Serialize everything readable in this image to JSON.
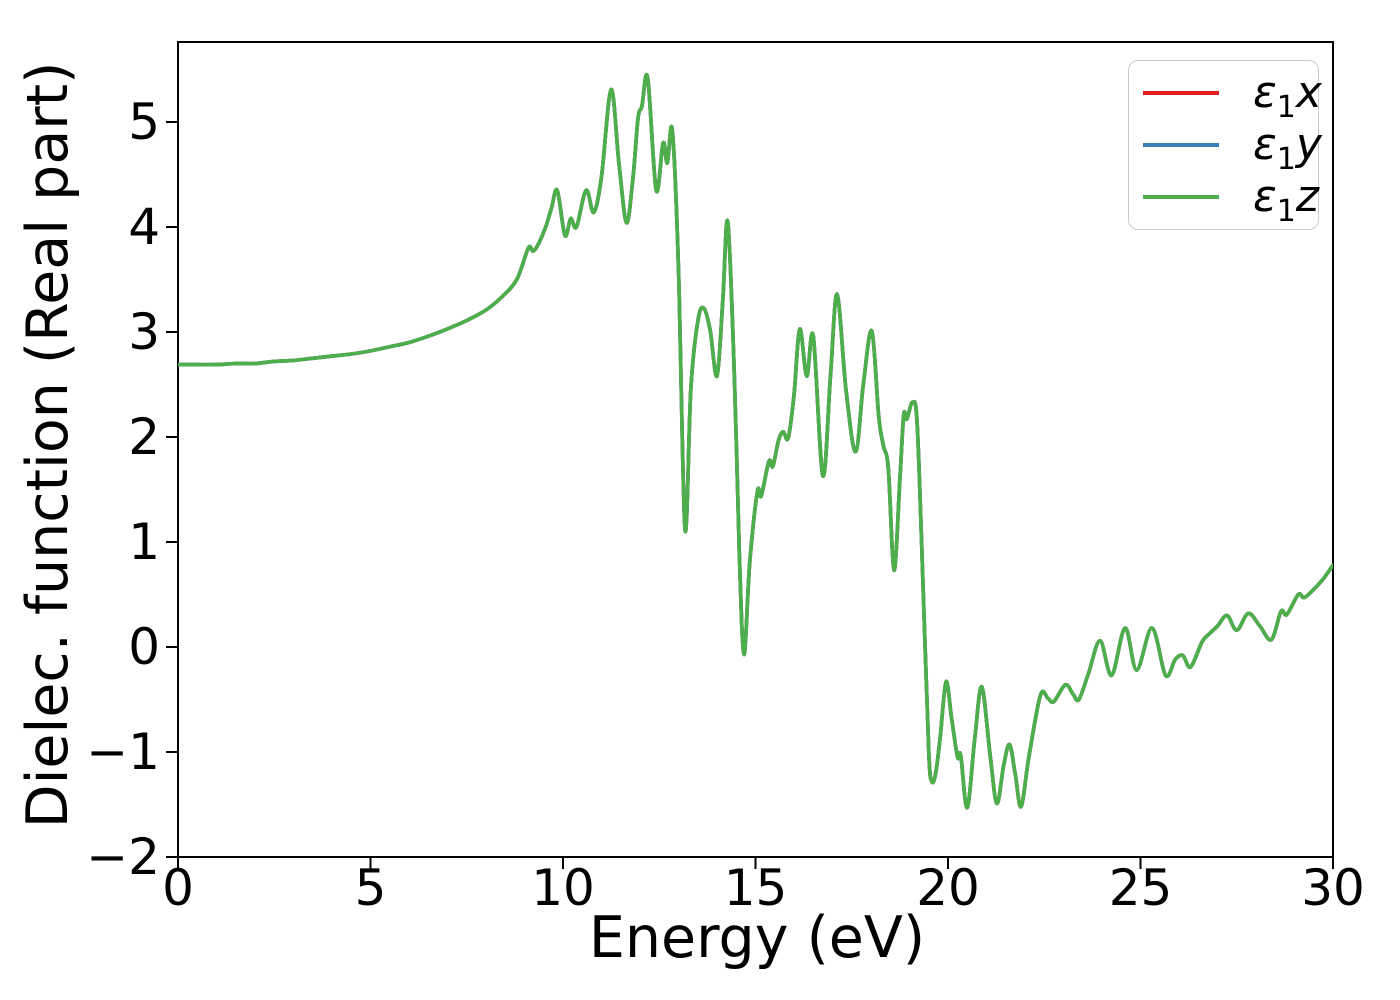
{
  "figure": {
    "background": "#ffffff",
    "spine_color": "#000000"
  },
  "chart_data": {
    "type": "line",
    "title": "",
    "xlabel": "Energy (eV)",
    "ylabel": "Dielec. function (Real part)",
    "xlim": [
      0,
      30
    ],
    "ylim": [
      -2.03,
      5.76
    ],
    "x_ticks": [
      0,
      5,
      10,
      15,
      20,
      25,
      30
    ],
    "y_ticks": [
      -2,
      -1,
      0,
      1,
      2,
      3,
      4,
      5
    ],
    "grid": false,
    "legend": {
      "position": "upper right",
      "entries": [
        {
          "symbol": "ε",
          "sub": "1",
          "component": "x",
          "color": "#e41a1c"
        },
        {
          "symbol": "ε",
          "sub": "1",
          "component": "y",
          "color": "#377eb8"
        },
        {
          "symbol": "ε",
          "sub": "1",
          "component": "z",
          "color": "#4daf4a"
        }
      ]
    },
    "series_note": "three series eps1x, eps1y, eps1z overlap exactly; drawn in order x(red), y(blue), z(green) so green is visible on top",
    "series": [
      {
        "name": "eps1_x",
        "color": "#e41a1c"
      },
      {
        "name": "eps1_y",
        "color": "#377eb8"
      },
      {
        "name": "eps1_z",
        "color": "#4daf4a"
      }
    ],
    "shared_points": {
      "x": [
        0,
        0.5,
        1,
        1.5,
        2,
        2.5,
        3,
        3.5,
        4,
        4.5,
        5,
        5.5,
        6,
        6.5,
        7,
        7.5,
        8,
        8.4,
        8.8,
        9.1,
        9.22,
        9.35,
        9.55,
        9.7,
        9.85,
        10.05,
        10.2,
        10.35,
        10.6,
        10.8,
        11.0,
        11.25,
        11.45,
        11.65,
        11.82,
        11.95,
        12.05,
        12.2,
        12.42,
        12.6,
        12.71,
        12.84,
        13.0,
        13.17,
        13.32,
        13.5,
        13.65,
        13.82,
        14.0,
        14.15,
        14.28,
        14.45,
        14.58,
        14.7,
        14.85,
        15.05,
        15.15,
        15.35,
        15.45,
        15.6,
        15.72,
        15.85,
        16.0,
        16.15,
        16.33,
        16.5,
        16.75,
        16.95,
        17.12,
        17.35,
        17.6,
        17.8,
        18.02,
        18.2,
        18.32,
        18.45,
        18.6,
        18.75,
        18.85,
        18.93,
        19.08,
        19.2,
        19.35,
        19.5,
        19.58,
        19.68,
        19.8,
        19.95,
        20.1,
        20.25,
        20.33,
        20.5,
        20.7,
        20.88,
        21.1,
        21.27,
        21.45,
        21.6,
        21.75,
        21.9,
        22.1,
        22.4,
        22.6,
        22.75,
        23.05,
        23.25,
        23.4,
        23.65,
        23.95,
        24.25,
        24.6,
        24.9,
        25.3,
        25.65,
        25.9,
        26.1,
        26.3,
        26.6,
        26.8,
        27.0,
        27.25,
        27.5,
        27.8,
        28.1,
        28.4,
        28.65,
        28.8,
        29.1,
        29.25,
        29.5,
        29.75,
        30
      ],
      "y": [
        2.69,
        2.69,
        2.69,
        2.7,
        2.7,
        2.72,
        2.73,
        2.75,
        2.77,
        2.79,
        2.82,
        2.86,
        2.9,
        2.96,
        3.03,
        3.11,
        3.21,
        3.33,
        3.5,
        3.8,
        3.77,
        3.83,
        4.0,
        4.18,
        4.35,
        3.92,
        4.08,
        4.0,
        4.35,
        4.14,
        4.48,
        5.31,
        4.62,
        4.04,
        4.48,
        5.04,
        5.15,
        5.42,
        4.35,
        4.8,
        4.61,
        4.92,
        3.6,
        1.12,
        2.45,
        3.1,
        3.23,
        3.02,
        2.58,
        3.3,
        4.05,
        2.6,
        0.9,
        -0.07,
        0.8,
        1.48,
        1.44,
        1.77,
        1.72,
        1.97,
        2.05,
        1.99,
        2.4,
        3.03,
        2.58,
        2.96,
        1.63,
        2.6,
        3.36,
        2.45,
        1.86,
        2.5,
        3.01,
        2.2,
        1.92,
        1.7,
        0.73,
        1.6,
        2.21,
        2.17,
        2.33,
        2.12,
        0.6,
        -1.0,
        -1.28,
        -1.2,
        -0.85,
        -0.33,
        -0.7,
        -1.05,
        -1.03,
        -1.53,
        -0.85,
        -0.38,
        -1.05,
        -1.49,
        -1.12,
        -0.93,
        -1.22,
        -1.52,
        -1.05,
        -0.46,
        -0.49,
        -0.52,
        -0.36,
        -0.45,
        -0.5,
        -0.25,
        0.06,
        -0.27,
        0.18,
        -0.22,
        0.18,
        -0.27,
        -0.12,
        -0.08,
        -0.19,
        0.05,
        0.13,
        0.2,
        0.3,
        0.16,
        0.32,
        0.2,
        0.07,
        0.34,
        0.31,
        0.5,
        0.47,
        0.55,
        0.65,
        0.78
      ]
    }
  }
}
